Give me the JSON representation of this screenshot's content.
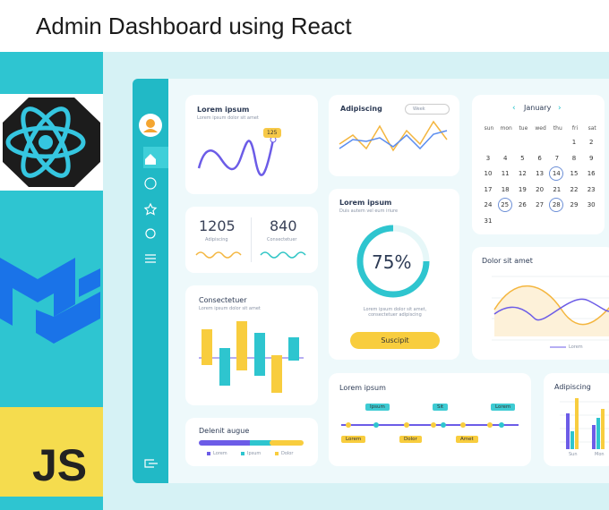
{
  "header": {
    "title": "Admin Dashboard using React"
  },
  "logos": {
    "js": "JS"
  },
  "cards": {
    "line_card": {
      "title": "Lorem ipsum",
      "subtitle": "Lorem ipsum dolor sit amet",
      "badge": "125"
    },
    "week_card": {
      "title": "Adipiscing",
      "dropdown": "Week"
    },
    "calendar": {
      "month": "January",
      "weekdays": [
        "sun",
        "mon",
        "tue",
        "wed",
        "thu",
        "fri",
        "sat"
      ],
      "weeks": [
        [
          null,
          null,
          null,
          null,
          null,
          1,
          2
        ],
        [
          3,
          4,
          5,
          6,
          7,
          8,
          9
        ],
        [
          10,
          11,
          12,
          13,
          14,
          15,
          16
        ],
        [
          17,
          18,
          19,
          20,
          21,
          22,
          23
        ],
        [
          24,
          25,
          26,
          27,
          28,
          29,
          30
        ],
        [
          31,
          null,
          null,
          null,
          null,
          null,
          null
        ]
      ],
      "circled": [
        14,
        25,
        28
      ]
    },
    "stats": {
      "items": [
        {
          "value": "1205",
          "label": "Adipiscing"
        },
        {
          "value": "840",
          "label": "Consectetuer"
        }
      ]
    },
    "gauge": {
      "title": "Lorem ipsum",
      "subtitle": "Duis autem vel eum iriure",
      "value": "75%",
      "text": "Lorem ipsum dolor sit amet, consectetuer adipiscing",
      "button": "Suscipit"
    },
    "wave": {
      "title": "Dolor sit amet",
      "legend": "Lorem"
    },
    "bars": {
      "title": "Consectetuer",
      "subtitle": "Lorem ipsum dolor sit amet"
    },
    "progress": {
      "title": "Delenit augue",
      "legend": [
        "Lorem",
        "Ipsum",
        "Dolor"
      ]
    },
    "timeline": {
      "title": "Lorem ipsum",
      "top_tags": [
        "Ipsum",
        "Sit",
        "Lorem"
      ],
      "bottom_tags": [
        "Lorem",
        "Dolor",
        "Amet"
      ]
    },
    "mini_bars": {
      "title": "Adipiscing",
      "labels": [
        "Sun",
        "Mon"
      ]
    }
  }
}
